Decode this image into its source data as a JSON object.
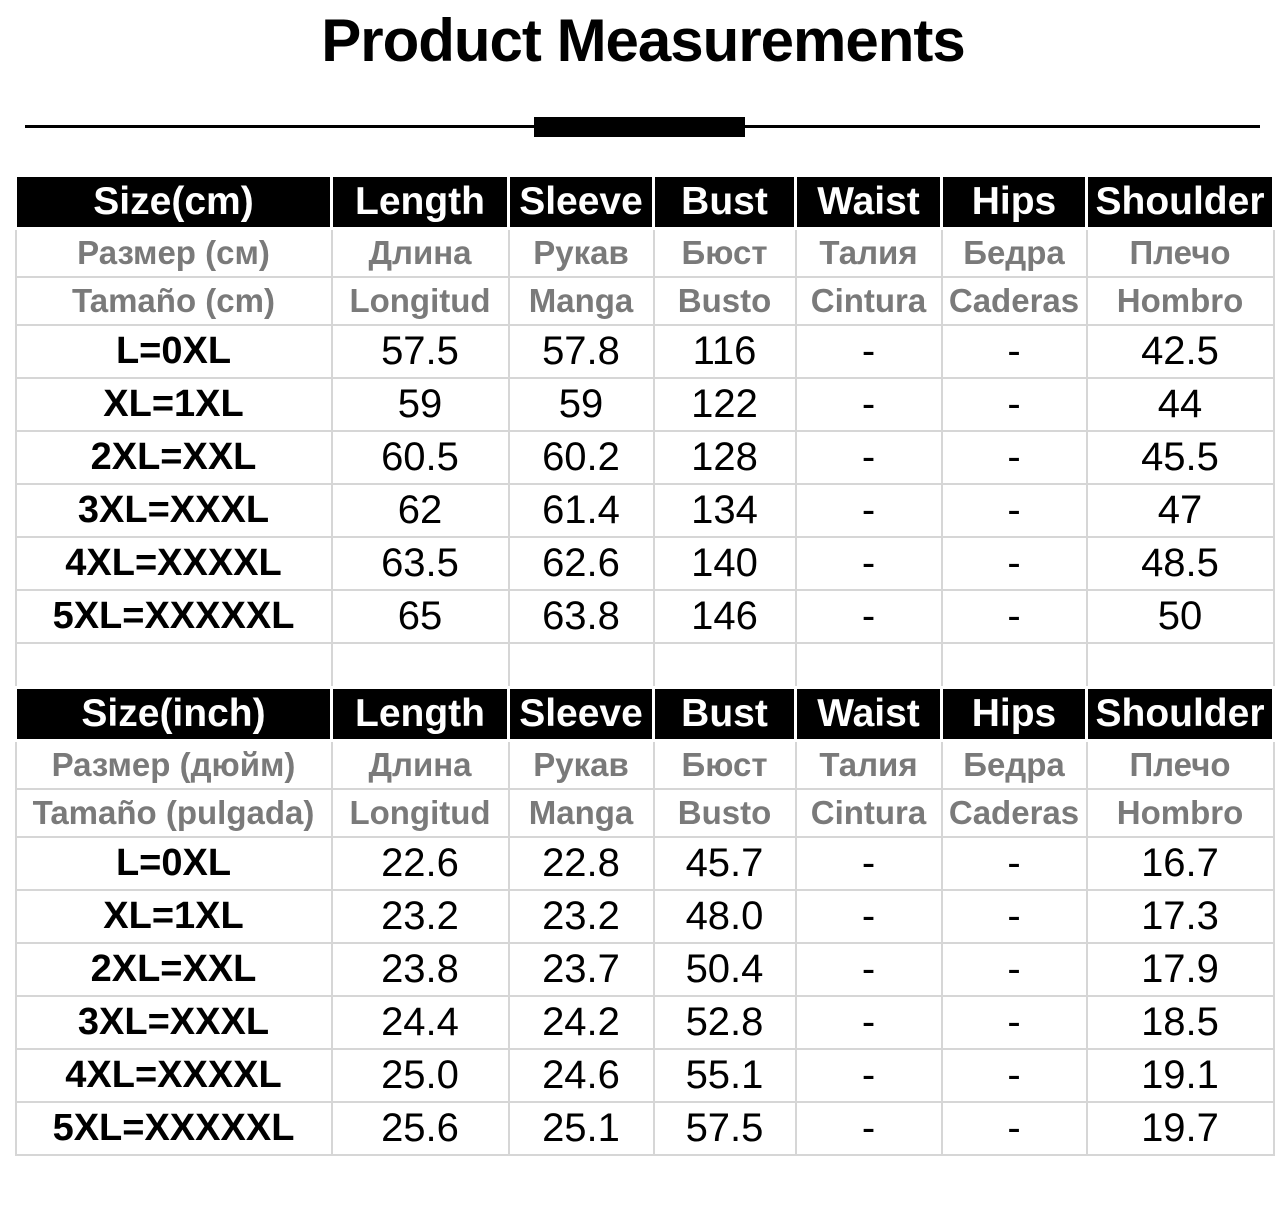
{
  "title": "Product Measurements",
  "colors": {
    "header_bg": "#000000",
    "header_text": "#ffffff",
    "translation_text": "#7a7a7a",
    "grid_border": "#d6d6d6",
    "divider": "#000000"
  },
  "tables": [
    {
      "name": "cm",
      "columns": [
        "Size(cm)",
        "Length",
        "Sleeve",
        "Bust",
        "Waist",
        "Hips",
        "Shoulder"
      ],
      "columns_russian": [
        "Размер (см)",
        "Длина",
        "Рукав",
        "Бюст",
        "Талия",
        "Бедра",
        "Плечо"
      ],
      "columns_spanish": [
        "Tamaño (cm)",
        "Longitud",
        "Manga",
        "Busto",
        "Cintura",
        "Caderas",
        "Hombro"
      ],
      "rows": [
        [
          "L=0XL",
          "57.5",
          "57.8",
          "116",
          "-",
          "-",
          "42.5"
        ],
        [
          "XL=1XL",
          "59",
          "59",
          "122",
          "-",
          "-",
          "44"
        ],
        [
          "2XL=XXL",
          "60.5",
          "60.2",
          "128",
          "-",
          "-",
          "45.5"
        ],
        [
          "3XL=XXXL",
          "62",
          "61.4",
          "134",
          "-",
          "-",
          "47"
        ],
        [
          "4XL=XXXXL",
          "63.5",
          "62.6",
          "140",
          "-",
          "-",
          "48.5"
        ],
        [
          "5XL=XXXXXL",
          "65",
          "63.8",
          "146",
          "-",
          "-",
          "50"
        ]
      ]
    },
    {
      "name": "inch",
      "columns": [
        "Size(inch)",
        "Length",
        "Sleeve",
        "Bust",
        "Waist",
        "Hips",
        "Shoulder"
      ],
      "columns_russian": [
        "Размер (дюйм)",
        "Длина",
        "Рукав",
        "Бюст",
        "Талия",
        "Бедра",
        "Плечо"
      ],
      "columns_spanish": [
        "Tamaño (pulgada)",
        "Longitud",
        "Manga",
        "Busto",
        "Cintura",
        "Caderas",
        "Hombro"
      ],
      "rows": [
        [
          "L=0XL",
          "22.6",
          "22.8",
          "45.7",
          "-",
          "-",
          "16.7"
        ],
        [
          "XL=1XL",
          "23.2",
          "23.2",
          "48.0",
          "-",
          "-",
          "17.3"
        ],
        [
          "2XL=XXL",
          "23.8",
          "23.7",
          "50.4",
          "-",
          "-",
          "17.9"
        ],
        [
          "3XL=XXXL",
          "24.4",
          "24.2",
          "52.8",
          "-",
          "-",
          "18.5"
        ],
        [
          "4XL=XXXXL",
          "25.0",
          "24.6",
          "55.1",
          "-",
          "-",
          "19.1"
        ],
        [
          "5XL=XXXXXL",
          "25.6",
          "25.1",
          "57.5",
          "-",
          "-",
          "19.7"
        ]
      ]
    }
  ]
}
